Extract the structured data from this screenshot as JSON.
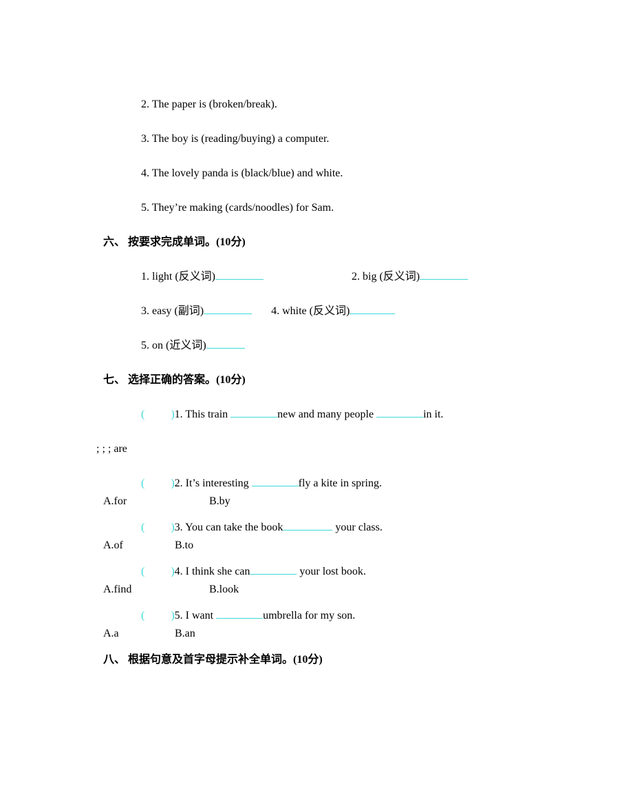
{
  "section5": {
    "q2": "2. The paper is (broken/break).",
    "q3": "3. The boy is (reading/buying) a computer.",
    "q4": "4. The lovely panda is (black/blue) and white.",
    "q5": "5. They’re making (cards/noodles) for Sam."
  },
  "section6": {
    "heading": "六、 按要求完成单词。(10分)",
    "items": [
      {
        "pre": "1. light (反义词)",
        "blank_w": 70
      },
      {
        "pre": "2. big (反义词)",
        "blank_w": 70
      },
      {
        "pre": "3. easy (副词)",
        "blank_w": 70
      },
      {
        "pre": "4. white (反义词)",
        "blank_w": 66
      },
      {
        "pre": "5. on (近义词)",
        "blank_w": 56
      }
    ]
  },
  "section7": {
    "heading": "七、 选择正确的答案。(10分)",
    "q1": {
      "pre": "1. This train ",
      "mid": "new and many people ",
      "post": "in it.",
      "b1": 68,
      "b2": 68
    },
    "q1_below": "; ; ; are",
    "q2": {
      "pre": "2. It’s interesting ",
      "post": "fly a kite in spring.",
      "b": 68,
      "A": "A.for",
      "B": "B.by",
      "gapA": 150
    },
    "q3": {
      "pre": "3. You can take the book",
      "post": " your class.",
      "b": 72,
      "A": "A.of",
      "B": "B.to",
      "gapA": 100
    },
    "q4": {
      "pre": "4. I think she can",
      "post": " your lost book.",
      "b": 68,
      "A": "A.find",
      "B": "B.look",
      "gapA": 150
    },
    "q5": {
      "pre": "5. I want ",
      "post": "umbrella for my son.",
      "b": 68,
      "A": "A.a",
      "B": "B.an",
      "gapA": 100
    }
  },
  "section8": {
    "heading": "八、 根据句意及首字母提示补全单词。(10分)"
  },
  "paren_open": "(",
  "paren_close": ")",
  "colors": {
    "blank": "#40d8d8",
    "text": "#000000",
    "bg": "#ffffff"
  }
}
